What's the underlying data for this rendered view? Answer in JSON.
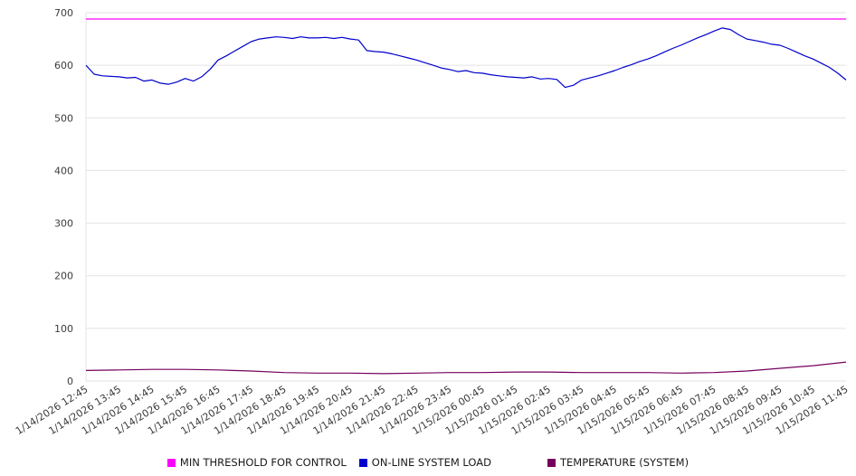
{
  "chart_data": {
    "type": "line",
    "title": "",
    "xlabel": "",
    "ylabel": "",
    "ylim": [
      0,
      700
    ],
    "ytick_interval": 100,
    "grid": "horizontal",
    "legend_position": "bottom",
    "axis_text_color": "#3c3c3c",
    "gridline_color": "#e3e3e3",
    "x_labels": [
      "1/14/2026 12:45",
      "1/14/2026 13:45",
      "1/14/2026 14:45",
      "1/14/2026 15:45",
      "1/14/2026 16:45",
      "1/14/2026 17:45",
      "1/14/2026 18:45",
      "1/14/2026 19:45",
      "1/14/2026 20:45",
      "1/14/2026 21:45",
      "1/14/2026 22:45",
      "1/14/2026 23:45",
      "1/15/2026 00:45",
      "1/15/2026 01:45",
      "1/15/2026 02:45",
      "1/15/2026 03:45",
      "1/15/2026 04:45",
      "1/15/2026 05:45",
      "1/15/2026 06:45",
      "1/15/2026 07:45",
      "1/15/2026 08:45",
      "1/15/2026 09:45",
      "1/15/2026 10:45",
      "1/15/2026 11:45"
    ],
    "series": [
      {
        "name": "MIN THRESHOLD FOR CONTROL",
        "color": "#ff00ff",
        "type": "constant",
        "value": 688
      },
      {
        "name": "ON-LINE SYSTEM LOAD",
        "color": "#0000cd",
        "type": "line",
        "values": [
          600,
          583,
          580,
          579,
          578,
          576,
          577,
          570,
          572,
          566,
          564,
          568,
          575,
          570,
          578,
          592,
          610,
          618,
          627,
          636,
          645,
          650,
          652,
          654,
          653,
          651,
          654,
          652,
          652,
          653,
          651,
          653,
          650,
          648,
          628,
          626,
          625,
          622,
          618,
          614,
          610,
          605,
          600,
          595,
          592,
          588,
          590,
          586,
          585,
          582,
          580,
          578,
          577,
          576,
          578,
          574,
          575,
          573,
          558,
          562,
          572,
          576,
          580,
          585,
          590,
          596,
          601,
          607,
          612,
          618,
          625,
          632,
          638,
          645,
          652,
          658,
          665,
          671,
          668,
          658,
          650,
          647,
          644,
          640,
          638,
          632,
          625,
          618,
          612,
          604,
          596,
          585,
          572
        ]
      },
      {
        "name": "TEMPERATURE (SYSTEM)",
        "color": "#75005d",
        "type": "line",
        "values": [
          20,
          21,
          22,
          22,
          21,
          19,
          16,
          15,
          15,
          14,
          15,
          16,
          16,
          17,
          17,
          16,
          16,
          16,
          15,
          16,
          19,
          24,
          29,
          36
        ]
      }
    ]
  }
}
